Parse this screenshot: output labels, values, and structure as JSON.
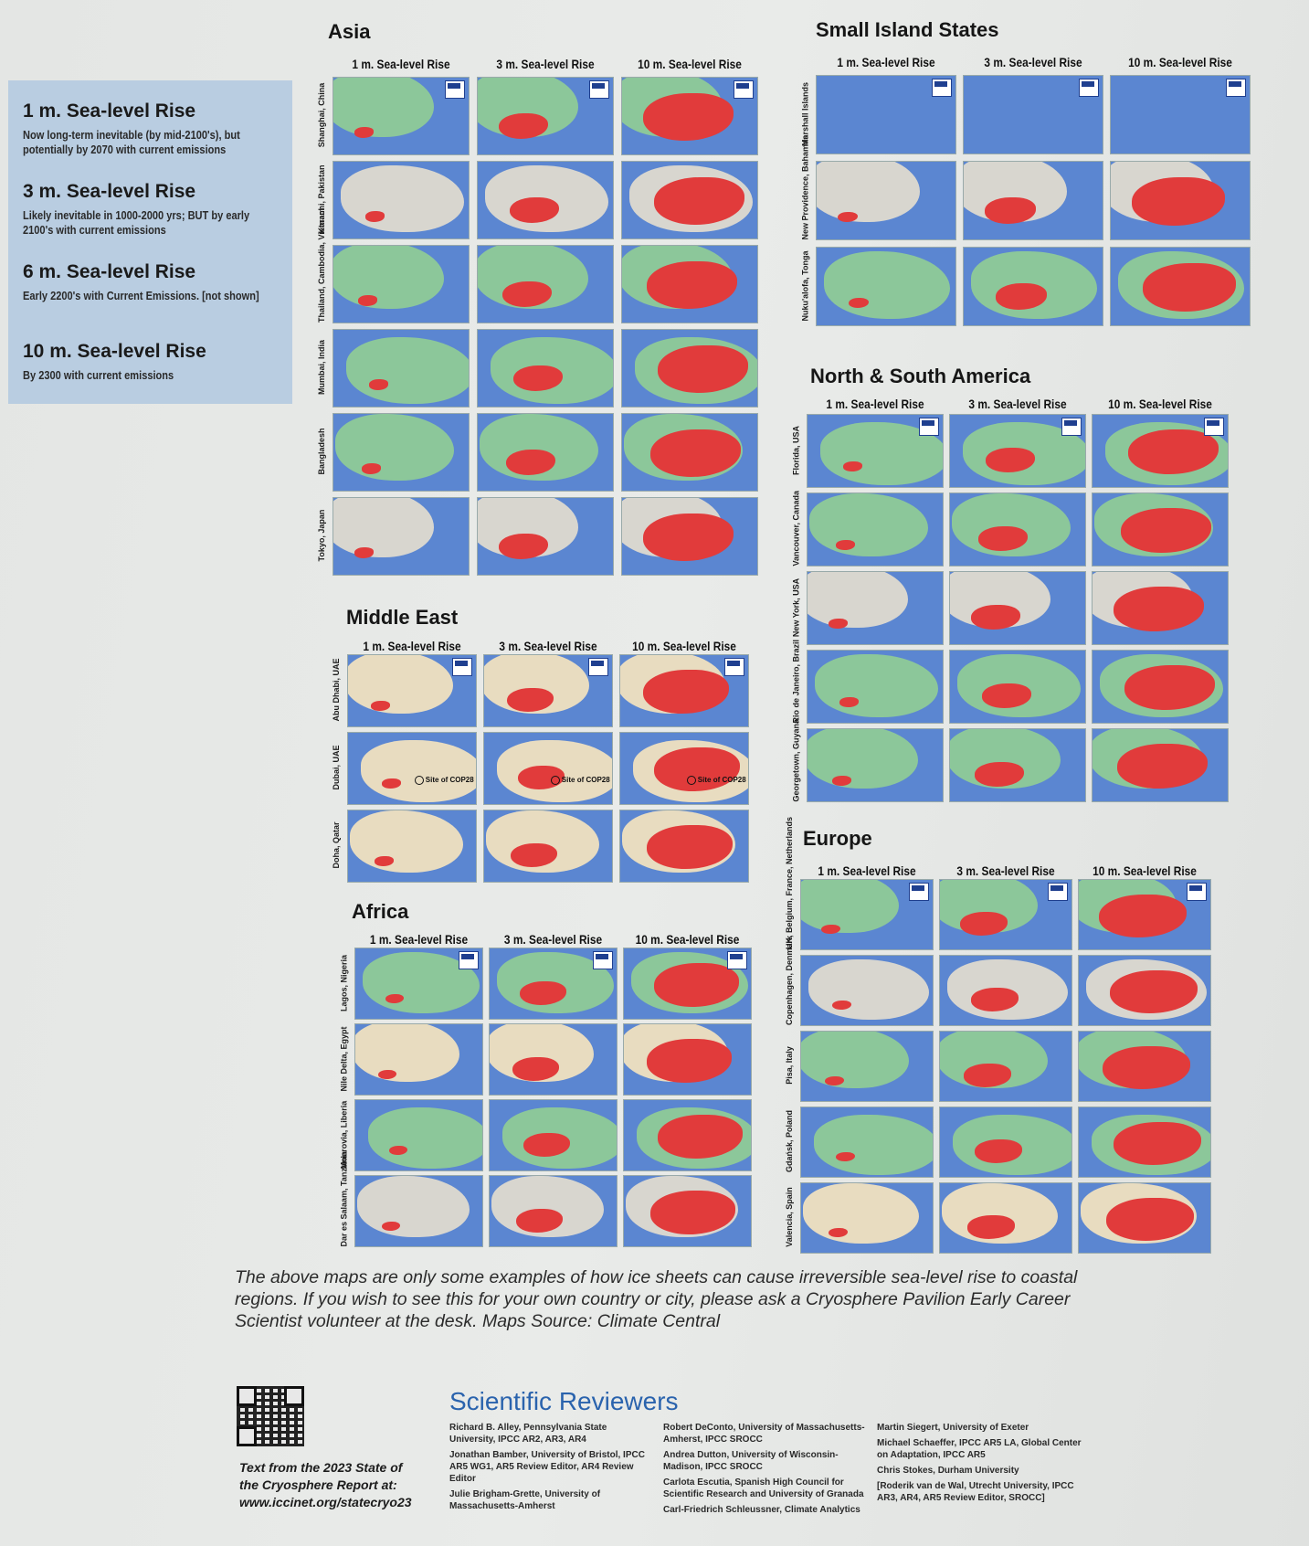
{
  "legend": [
    {
      "title": "1 m. Sea-level Rise",
      "desc": "Now long-term inevitable (by mid-2100's), but potentially by 2070 with current emissions"
    },
    {
      "title": "3 m. Sea-level Rise",
      "desc": "Likely inevitable in 1000-2000 yrs; BUT by early 2100's with current emissions"
    },
    {
      "title": "6 m. Sea-level Rise",
      "desc": "Early 2200's with Current Emissions. [not shown]"
    },
    {
      "title": "10 m. Sea-level Rise",
      "desc": "By 2300 with current emissions"
    }
  ],
  "column_headers": [
    "1 m. Sea-level Rise",
    "3 m. Sea-level Rise",
    "10 m. Sea-level Rise"
  ],
  "colors": {
    "water": "#5b86d1",
    "flood": "#e13b3b",
    "land_green": "#8cc79a",
    "land_beige": "#e8dcc0",
    "land_gray": "#d8d6cf",
    "legend_bg": "#b9cde1",
    "reviewers_title": "#2a63ad"
  },
  "regions": [
    {
      "id": "asia",
      "title": "Asia",
      "locations": [
        {
          "name": "Shanghai, China",
          "land": "green"
        },
        {
          "name": "Karachi, Pakistan",
          "land": "gray"
        },
        {
          "name": "Thailand, Cambodia, Vietnam",
          "land": "green"
        },
        {
          "name": "Mumbai, India",
          "land": "green"
        },
        {
          "name": "Bangladesh",
          "land": "green"
        },
        {
          "name": "Tokyo, Japan",
          "land": "gray"
        }
      ]
    },
    {
      "id": "small-island-states",
      "title": "Small Island States",
      "locations": [
        {
          "name": "Marshall Islands",
          "land": "none"
        },
        {
          "name": "New Providence, Bahamas",
          "land": "gray"
        },
        {
          "name": "Nuku'alofa, Tonga",
          "land": "green"
        }
      ]
    },
    {
      "id": "americas",
      "title": "North & South America",
      "locations": [
        {
          "name": "Florida, USA",
          "land": "green"
        },
        {
          "name": "Vancouver, Canada",
          "land": "green"
        },
        {
          "name": "New York, USA",
          "land": "gray"
        },
        {
          "name": "Rio de Janeiro, Brazil",
          "land": "green"
        },
        {
          "name": "Georgetown, Guyana",
          "land": "green"
        }
      ]
    },
    {
      "id": "middle-east",
      "title": "Middle East",
      "locations": [
        {
          "name": "Abu Dhabi, UAE",
          "land": "beige"
        },
        {
          "name": "Dubai, UAE",
          "land": "beige",
          "annotation": "Site of COP28"
        },
        {
          "name": "Doha, Qatar",
          "land": "beige"
        }
      ]
    },
    {
      "id": "africa",
      "title": "Africa",
      "locations": [
        {
          "name": "Lagos, Nigeria",
          "land": "green"
        },
        {
          "name": "Nile Delta, Egypt",
          "land": "beige"
        },
        {
          "name": "Monrovia, Liberia",
          "land": "green"
        },
        {
          "name": "Dar es Salaam, Tanzania",
          "land": "gray"
        }
      ]
    },
    {
      "id": "europe",
      "title": "Europe",
      "locations": [
        {
          "name": "UK, Belgium, France, Netherlands",
          "land": "green"
        },
        {
          "name": "Copenhagen, Denmark",
          "land": "gray"
        },
        {
          "name": "Pisa, Italy",
          "land": "green"
        },
        {
          "name": "Gdańsk, Poland",
          "land": "green"
        },
        {
          "name": "Valencia, Spain",
          "land": "beige"
        }
      ]
    }
  ],
  "caption": "The above maps are only some examples of how ice sheets can cause irreversible sea-level rise to coastal regions. If you wish to see this for your own country or city, please ask a Cryosphere Pavilion Early Career Scientist volunteer at the desk. Maps Source: Climate Central",
  "source_text": {
    "line1": "Text from the 2023 State of",
    "line2": "the Cryosphere Report at:",
    "url": "www.iccinet.org/statecryo23"
  },
  "reviewers": {
    "title": "Scientific Reviewers",
    "columns": [
      [
        "Richard B. Alley, Pennsylvania State University, IPCC AR2, AR3, AR4",
        "Jonathan Bamber, University of Bristol, IPCC AR5 WG1, AR5 Review Editor, AR4 Review Editor",
        "Julie Brigham-Grette, University of Massachusetts-Amherst"
      ],
      [
        "Robert DeConto, University of Massachusetts-Amherst, IPCC SROCC",
        "Andrea Dutton, University of Wisconsin-Madison, IPCC SROCC",
        "Carlota Escutia, Spanish High Council for Scientific Research and University of Granada",
        "Carl-Friedrich Schleussner, Climate Analytics"
      ],
      [
        "Martin Siegert, University of Exeter",
        "Michael Schaeffer, IPCC AR5 LA, Global Center on Adaptation, IPCC AR5",
        "Chris Stokes, Durham University",
        "[Roderik van de Wal, Utrecht University, IPCC AR3, AR4, AR5 Review Editor, SROCC]"
      ]
    ]
  }
}
